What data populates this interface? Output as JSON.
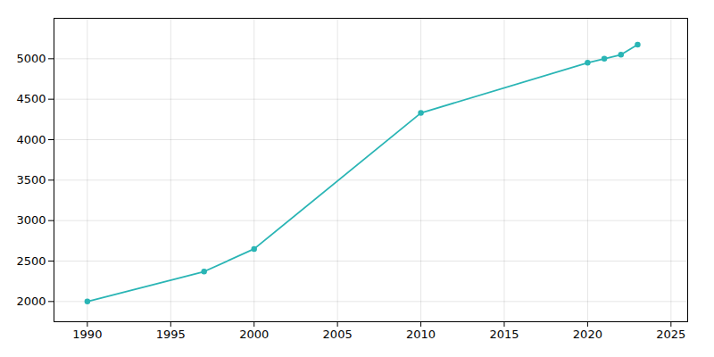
{
  "chart_data": {
    "type": "line",
    "x": [
      1990,
      1997,
      2000,
      2010,
      2020,
      2021,
      2022,
      2023
    ],
    "values": [
      2000,
      2370,
      2650,
      4330,
      4950,
      5000,
      5050,
      5175
    ],
    "color": "#2ab5b5",
    "marker": "circle",
    "xlim": [
      1988,
      2026
    ],
    "ylim": [
      1750,
      5500
    ],
    "xticks": [
      1990,
      1995,
      2000,
      2005,
      2010,
      2015,
      2020,
      2025
    ],
    "yticks": [
      2000,
      2500,
      3000,
      3500,
      4000,
      4500,
      5000
    ],
    "grid": true
  }
}
